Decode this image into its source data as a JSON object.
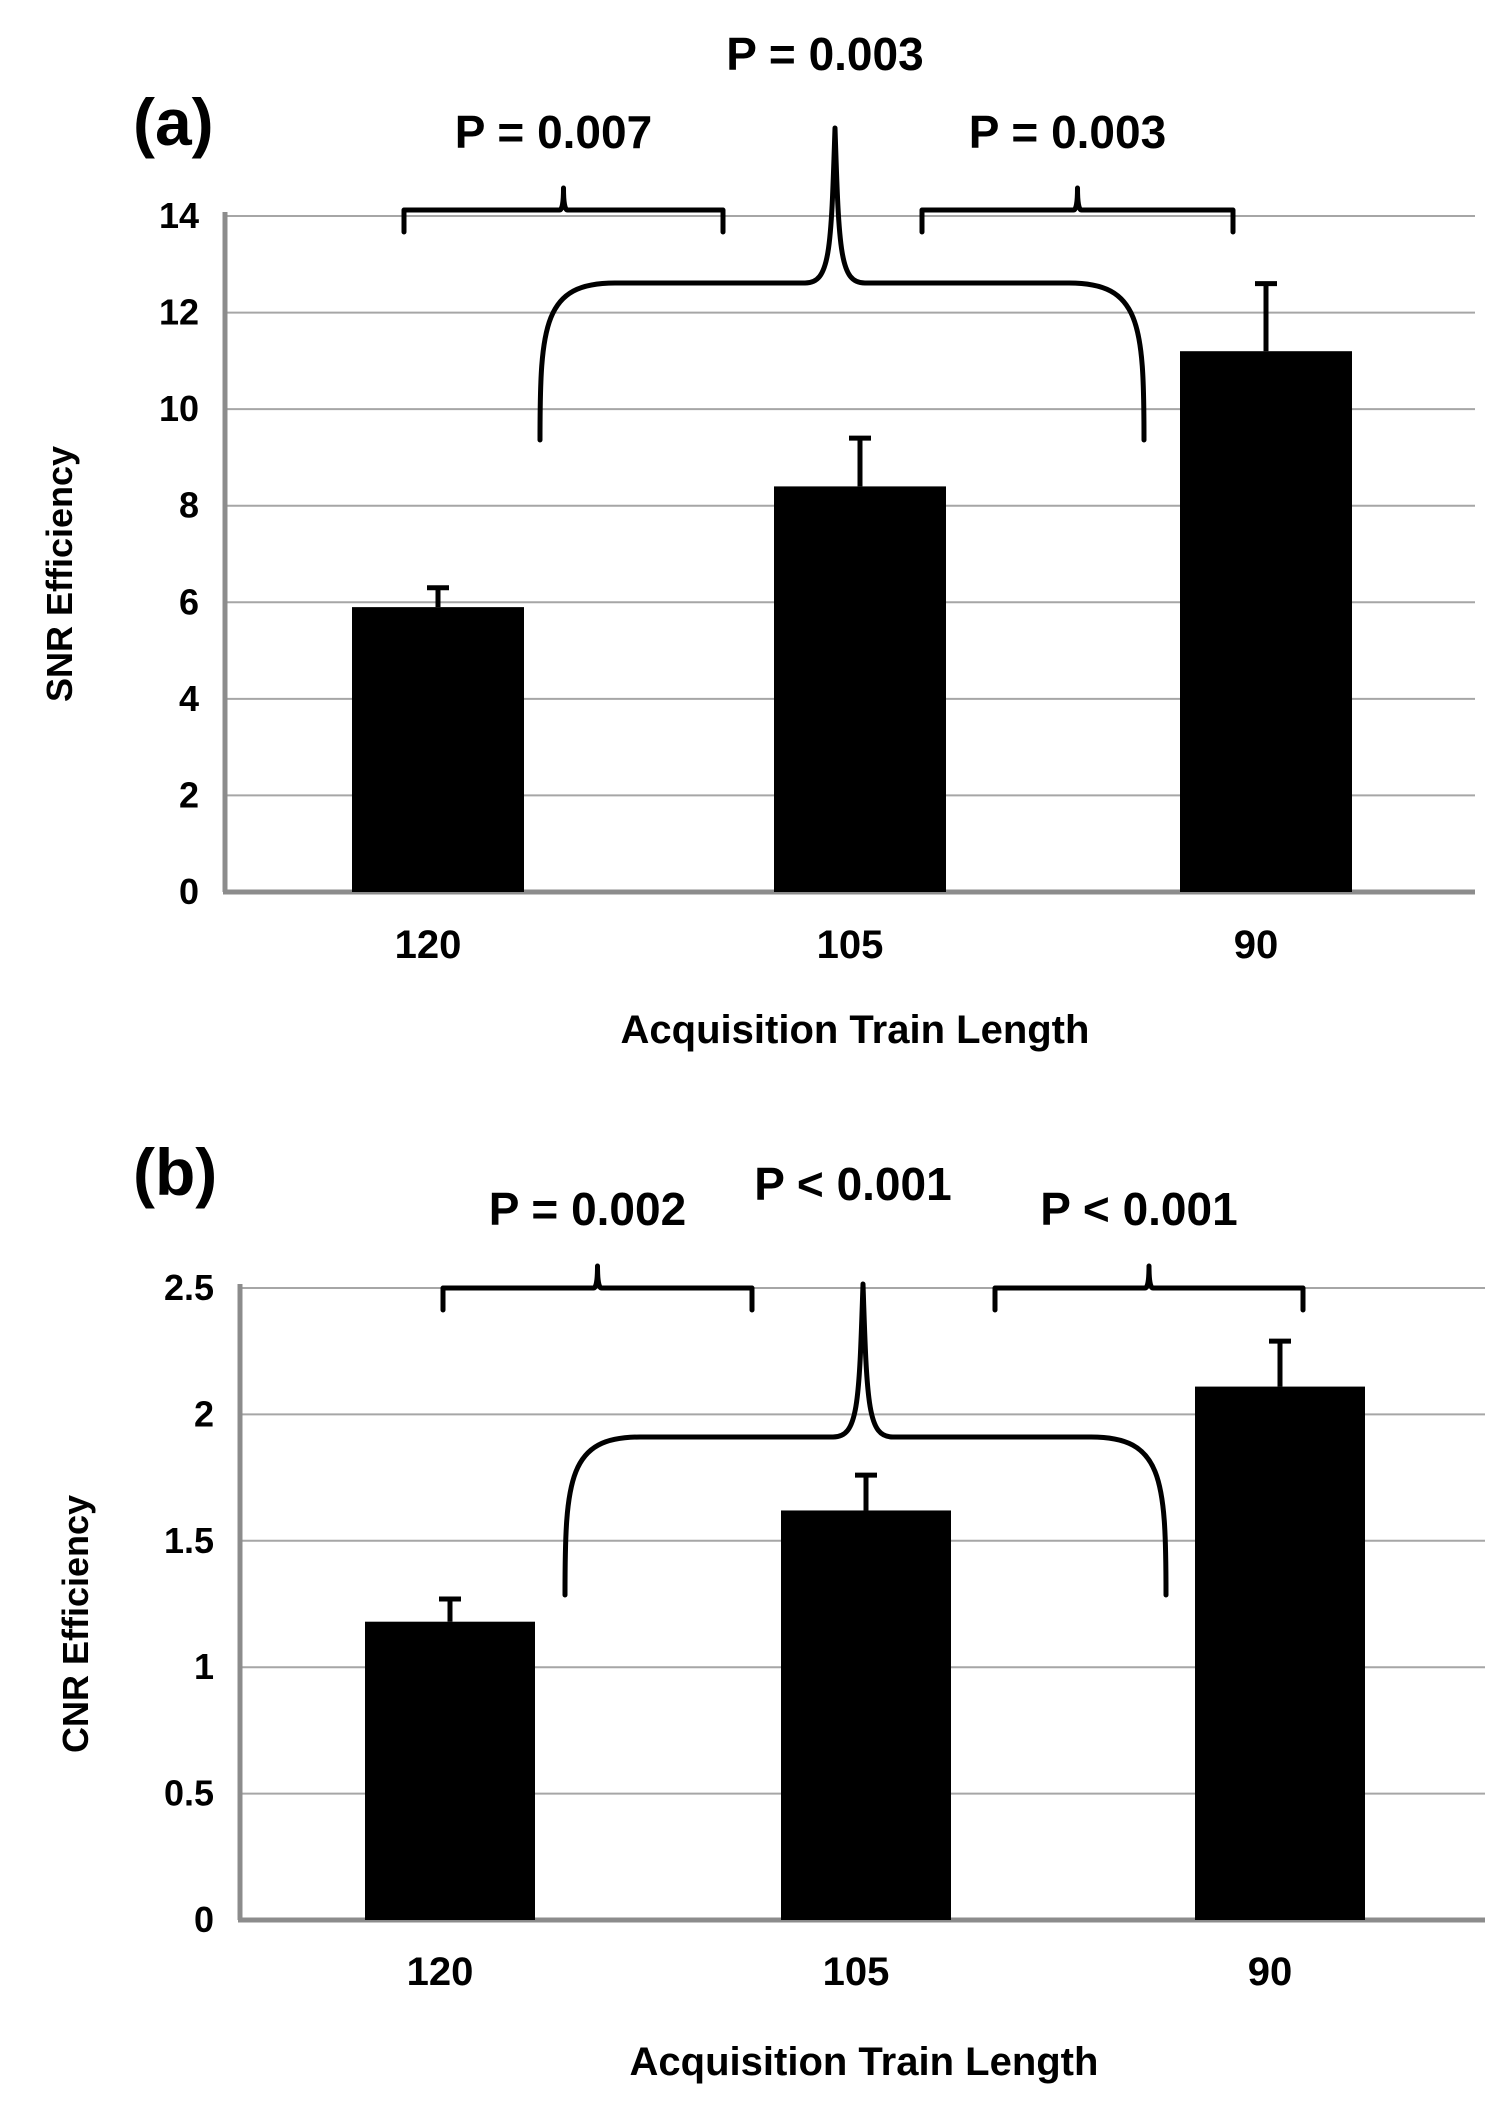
{
  "chart_data": [
    {
      "type": "bar",
      "panel_label": "(a)",
      "categories": [
        "120",
        "105",
        "90"
      ],
      "values": [
        5.9,
        8.4,
        11.2
      ],
      "error_upper": [
        6.3,
        9.4,
        12.6
      ],
      "xlabel": "Acquisition Train Length",
      "ylabel": "SNR Efficiency",
      "ylim": [
        0,
        14
      ],
      "yticks": [
        0,
        2,
        4,
        6,
        8,
        10,
        12,
        14
      ],
      "ytick_labels": [
        "0",
        "2",
        "4",
        "6",
        "8",
        "10",
        "12",
        "14"
      ],
      "grid": true,
      "bar_color": "#000000",
      "annotations": [
        {
          "text": "P = 0.007",
          "between": [
            "120",
            "105"
          ]
        },
        {
          "text": "P = 0.003",
          "between": [
            "105",
            "90"
          ]
        },
        {
          "text": "P = 0.003",
          "between": [
            "120",
            "90"
          ]
        }
      ]
    },
    {
      "type": "bar",
      "panel_label": "(b)",
      "categories": [
        "120",
        "105",
        "90"
      ],
      "values": [
        1.18,
        1.62,
        2.11
      ],
      "error_upper": [
        1.27,
        1.76,
        2.29
      ],
      "xlabel": "Acquisition Train Length",
      "ylabel": "CNR Efficiency",
      "ylim": [
        0,
        2.5
      ],
      "yticks": [
        0,
        0.5,
        1,
        1.5,
        2,
        2.5
      ],
      "ytick_labels": [
        "0",
        "0.5",
        "1",
        "1.5",
        "2",
        "2.5"
      ],
      "grid": true,
      "bar_color": "#000000",
      "annotations": [
        {
          "text": "P = 0.002",
          "between": [
            "120",
            "105"
          ]
        },
        {
          "text": "P < 0.001",
          "between": [
            "105",
            "90"
          ]
        },
        {
          "text": "P < 0.001",
          "between": [
            "120",
            "90"
          ]
        }
      ]
    }
  ]
}
